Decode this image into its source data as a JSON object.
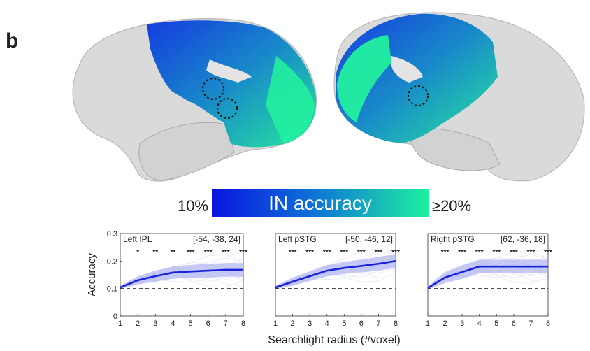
{
  "panel_label": "b",
  "colorbar": {
    "label": "IN accuracy",
    "min_label": "10%",
    "max_label": "≥20%",
    "color_low": "#0a1ee6",
    "color_high": "#19f0a0"
  },
  "shared_xlabel": "Searchlight radius (#voxel)",
  "chart_data": [
    {
      "type": "line",
      "title": "Left IPL",
      "coords": "[-54, -38, 24]",
      "x": [
        1,
        2,
        3,
        4,
        5,
        6,
        7,
        8
      ],
      "series": [
        {
          "values": [
            0.104,
            0.13,
            0.145,
            0.158,
            0.162,
            0.165,
            0.168,
            0.168
          ]
        }
      ],
      "band_upper": [
        0.11,
        0.145,
        0.165,
        0.18,
        0.186,
        0.19,
        0.193,
        0.193
      ],
      "band_lower": [
        0.098,
        0.115,
        0.125,
        0.136,
        0.138,
        0.14,
        0.143,
        0.143
      ],
      "chance": 0.1,
      "significance": [
        "",
        "*",
        "**",
        "**",
        "***",
        "***",
        "***",
        "***"
      ],
      "ylabel": "Accuracy",
      "xlim": [
        1,
        8
      ],
      "ylim": [
        0,
        0.3
      ],
      "yticks": [
        "0",
        "0.1",
        "0.2",
        "0.3"
      ],
      "xticks": [
        "1",
        "2",
        "3",
        "4",
        "5",
        "6",
        "7",
        "8"
      ]
    },
    {
      "type": "line",
      "title": "Left pSTG",
      "coords": "[-50, -46, 12]",
      "x": [
        1,
        2,
        3,
        4,
        5,
        6,
        7,
        8
      ],
      "series": [
        {
          "values": [
            0.104,
            0.125,
            0.145,
            0.165,
            0.175,
            0.182,
            0.19,
            0.2
          ]
        }
      ],
      "band_upper": [
        0.11,
        0.14,
        0.162,
        0.185,
        0.197,
        0.205,
        0.215,
        0.225
      ],
      "band_lower": [
        0.098,
        0.11,
        0.128,
        0.145,
        0.153,
        0.159,
        0.165,
        0.175
      ],
      "chance": 0.1,
      "significance": [
        "",
        "***",
        "***",
        "***",
        "***",
        "***",
        "***",
        "***"
      ],
      "xlim": [
        1,
        8
      ],
      "ylim": [
        0,
        0.3
      ],
      "xticks": [
        "1",
        "2",
        "3",
        "4",
        "5",
        "6",
        "7",
        "8"
      ]
    },
    {
      "type": "line",
      "title": "Right pSTG",
      "coords": "[62, -36, 18]",
      "x": [
        1,
        2,
        3,
        4,
        5,
        6,
        7,
        8
      ],
      "series": [
        {
          "values": [
            0.102,
            0.14,
            0.16,
            0.18,
            0.18,
            0.18,
            0.18,
            0.18
          ]
        }
      ],
      "band_upper": [
        0.108,
        0.16,
        0.185,
        0.205,
        0.205,
        0.205,
        0.205,
        0.205
      ],
      "band_lower": [
        0.096,
        0.12,
        0.135,
        0.155,
        0.155,
        0.155,
        0.155,
        0.155
      ],
      "chance": 0.1,
      "significance": [
        "",
        "***",
        "***",
        "***",
        "***",
        "***",
        "***",
        "***"
      ],
      "xlim": [
        1,
        8
      ],
      "ylim": [
        0,
        0.3
      ],
      "xticks": [
        "1",
        "2",
        "3",
        "4",
        "5",
        "6",
        "7",
        "8"
      ]
    }
  ]
}
